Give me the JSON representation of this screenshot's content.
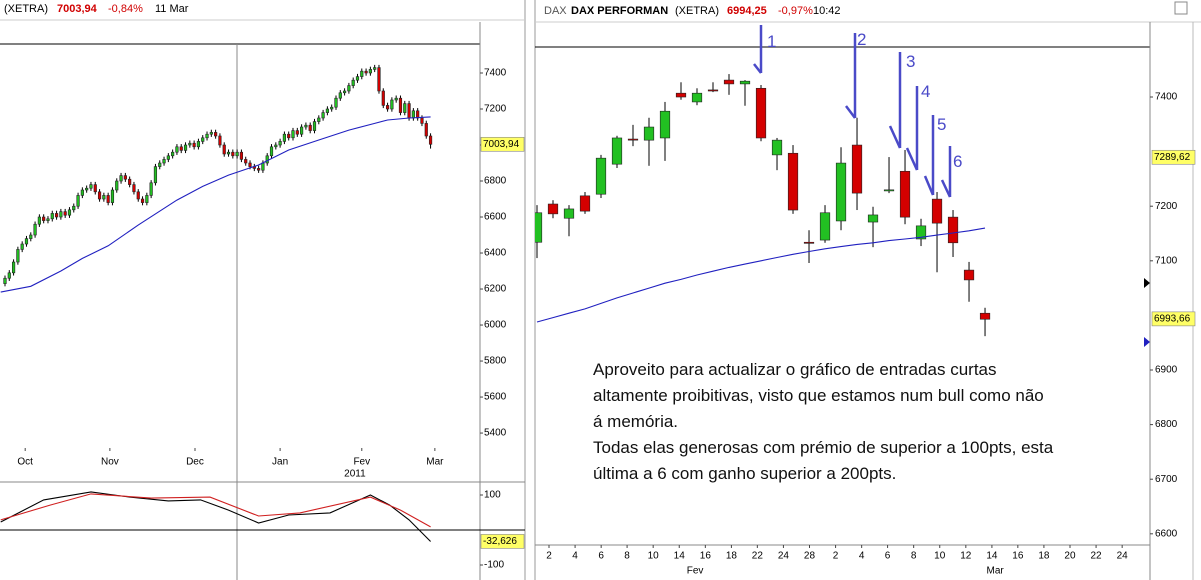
{
  "chart_data": [
    {
      "type": "candlestick",
      "header": {
        "exchange": "(XETRA)",
        "price": "7003,94",
        "change": "-0,84%",
        "date": "11 Mar"
      },
      "xlim": [
        -1.16,
        110.5
      ],
      "ylim": [
        5317,
        7561
      ],
      "yticks": [
        5400,
        5600,
        5800,
        6000,
        6200,
        6400,
        6600,
        6800,
        7000,
        7200,
        7400
      ],
      "xticks": [
        {
          "value": 4.7,
          "label": "Oct"
        },
        {
          "value": 24.4,
          "label": "Nov"
        },
        {
          "value": 44.2,
          "label": "Dec"
        },
        {
          "value": 64,
          "label": "Jan"
        },
        {
          "value": 83,
          "label": "Fev"
        },
        {
          "value": 100,
          "label": "Mar"
        }
      ],
      "year_label": {
        "value": 81.4,
        "label": "2011"
      },
      "price_labels": [
        {
          "value": 7003.94,
          "label": "7003,94"
        }
      ],
      "candles": {
        "up_color": "#22c022",
        "down_color": "#d40000",
        "x": [
          0,
          1,
          2,
          3,
          4,
          5,
          6,
          7,
          8,
          9,
          10,
          11,
          12,
          13,
          14,
          15,
          16,
          17,
          18,
          19,
          20,
          21,
          22,
          23,
          24,
          25,
          26,
          27,
          28,
          29,
          30,
          31,
          32,
          33,
          34,
          35,
          36,
          37,
          38,
          39,
          40,
          41,
          42,
          43,
          44,
          45,
          46,
          47,
          48,
          49,
          50,
          51,
          52,
          53,
          54,
          55,
          56,
          57,
          58,
          59,
          60,
          61,
          62,
          63,
          64,
          65,
          66,
          67,
          68,
          69,
          70,
          71,
          72,
          73,
          74,
          75,
          76,
          77,
          78,
          79,
          80,
          81,
          82,
          83,
          84,
          85,
          86,
          87,
          88,
          89,
          90,
          91,
          92,
          93,
          94,
          95,
          96,
          97,
          98,
          99
        ],
        "open": [
          6230,
          6260,
          6290,
          6350,
          6420,
          6450,
          6480,
          6500,
          6560,
          6600,
          6580,
          6590,
          6620,
          6600,
          6630,
          6610,
          6640,
          6660,
          6720,
          6750,
          6760,
          6780,
          6740,
          6700,
          6720,
          6680,
          6750,
          6800,
          6830,
          6810,
          6780,
          6740,
          6700,
          6680,
          6720,
          6790,
          6880,
          6900,
          6920,
          6940,
          6960,
          6990,
          6970,
          7000,
          7010,
          6990,
          7020,
          7040,
          7060,
          7070,
          7050,
          7000,
          6950,
          6960,
          6940,
          6960,
          6920,
          6900,
          6880,
          6870,
          6860,
          6900,
          6940,
          6990,
          7000,
          7020,
          7060,
          7040,
          7080,
          7060,
          7100,
          7110,
          7080,
          7130,
          7150,
          7180,
          7200,
          7210,
          7260,
          7290,
          7300,
          7330,
          7360,
          7380,
          7410,
          7400,
          7420,
          7430,
          7300,
          7220,
          7200,
          7250,
          7260,
          7180,
          7230,
          7150,
          7190,
          7150,
          7120,
          7050
        ],
        "high": [
          6275,
          6305,
          6365,
          6435,
          6465,
          6495,
          6515,
          6575,
          6615,
          6615,
          6605,
          6635,
          6635,
          6645,
          6645,
          6655,
          6675,
          6735,
          6765,
          6775,
          6795,
          6795,
          6755,
          6735,
          6735,
          6765,
          6815,
          6845,
          6845,
          6825,
          6795,
          6755,
          6715,
          6735,
          6805,
          6895,
          6915,
          6935,
          6955,
          6975,
          7005,
          7005,
          7015,
          7025,
          7025,
          7035,
          7055,
          7075,
          7085,
          7085,
          7065,
          7015,
          6975,
          6975,
          6975,
          6975,
          6935,
          6915,
          6895,
          6885,
          6915,
          6955,
          7005,
          7015,
          7035,
          7075,
          7075,
          7095,
          7095,
          7115,
          7125,
          7125,
          7145,
          7165,
          7195,
          7215,
          7225,
          7275,
          7305,
          7315,
          7345,
          7375,
          7395,
          7425,
          7425,
          7435,
          7445,
          7445,
          7315,
          7235,
          7265,
          7275,
          7275,
          7245,
          7245,
          7205,
          7205,
          7165,
          7135,
          7065
        ],
        "low": [
          6215,
          6245,
          6275,
          6335,
          6405,
          6435,
          6465,
          6485,
          6545,
          6565,
          6565,
          6575,
          6585,
          6585,
          6595,
          6595,
          6625,
          6645,
          6705,
          6735,
          6745,
          6725,
          6685,
          6685,
          6665,
          6665,
          6735,
          6785,
          6795,
          6765,
          6725,
          6685,
          6665,
          6665,
          6705,
          6775,
          6865,
          6885,
          6905,
          6925,
          6945,
          6955,
          6955,
          6985,
          6975,
          6975,
          7005,
          7025,
          7045,
          7035,
          6985,
          6935,
          6935,
          6925,
          6925,
          6905,
          6885,
          6865,
          6855,
          6845,
          6845,
          6885,
          6925,
          6975,
          6985,
          7005,
          7025,
          7025,
          7045,
          7045,
          7085,
          7065,
          7065,
          7115,
          7135,
          7165,
          7185,
          7195,
          7245,
          7275,
          7285,
          7315,
          7345,
          7365,
          7385,
          7385,
          7405,
          7285,
          7205,
          7185,
          7185,
          7235,
          7165,
          7165,
          7135,
          7135,
          7135,
          7105,
          7035,
          6980
        ],
        "close": [
          6260,
          6290,
          6350,
          6420,
          6450,
          6480,
          6500,
          6560,
          6600,
          6580,
          6590,
          6620,
          6600,
          6630,
          6610,
          6640,
          6660,
          6720,
          6750,
          6760,
          6780,
          6740,
          6700,
          6720,
          6680,
          6750,
          6800,
          6830,
          6810,
          6780,
          6740,
          6700,
          6680,
          6720,
          6790,
          6880,
          6900,
          6920,
          6940,
          6960,
          6990,
          6970,
          7000,
          7010,
          6990,
          7020,
          7040,
          7060,
          7070,
          7050,
          7000,
          6950,
          6960,
          6940,
          6960,
          6920,
          6900,
          6880,
          6870,
          6860,
          6900,
          6940,
          6990,
          7000,
          7020,
          7060,
          7040,
          7080,
          7060,
          7100,
          7110,
          7080,
          7130,
          7150,
          7180,
          7200,
          7210,
          7260,
          7290,
          7300,
          7330,
          7360,
          7380,
          7410,
          7400,
          7420,
          7430,
          7300,
          7220,
          7200,
          7250,
          7260,
          7180,
          7230,
          7150,
          7190,
          7150,
          7120,
          7050,
          7004
        ]
      },
      "series": [
        {
          "color": "#2020c0",
          "x": [
            -1,
            6,
            13,
            18,
            24,
            31,
            40,
            46,
            52,
            59,
            66,
            73,
            80,
            86,
            89,
            94,
            99
          ],
          "values": [
            6183,
            6215,
            6300,
            6370,
            6440,
            6555,
            6694,
            6770,
            6833,
            6889,
            6972,
            7028,
            7083,
            7120,
            7139,
            7150,
            7156
          ]
        }
      ]
    },
    {
      "type": "line",
      "xlim": [
        -1.16,
        110.5
      ],
      "ylim": [
        -120,
        120
      ],
      "yticks": [
        100,
        -100
      ],
      "zero_line": 0,
      "price_labels": [
        {
          "value": -32.626,
          "label": "-32,626"
        }
      ],
      "series": [
        {
          "color": "#000000",
          "x": [
            -1,
            3.5,
            9,
            20,
            29,
            38,
            45.5,
            52,
            59,
            66,
            75.6,
            85,
            89.5,
            94,
            99
          ],
          "values": [
            23,
            51,
            86,
            109,
            94,
            83,
            86,
            57,
            20,
            43,
            49,
            100,
            71,
            29,
            -33
          ]
        },
        {
          "color": "#d02020",
          "x": [
            -1,
            10.5,
            20,
            34,
            47.7,
            59,
            68.6,
            85,
            92,
            99
          ],
          "values": [
            29,
            71,
            103,
            91,
            94,
            40,
            49,
            94,
            57,
            9
          ]
        }
      ]
    },
    {
      "type": "candlestick",
      "header": {
        "symbol": "DAX",
        "name": "DAX PERFORMAN",
        "exchange": "(XETRA)",
        "price": "6994,25",
        "change": "-0,97%",
        "time": "10:42"
      },
      "xlim": [
        -0.125,
        38.31
      ],
      "ylim": [
        6579.5,
        7491.6
      ],
      "yticks": [
        6600,
        6700,
        6800,
        6900,
        7100,
        7200,
        7400
      ],
      "xticks": [
        {
          "value": 0.75,
          "label": "2"
        },
        {
          "value": 2.38,
          "label": "4"
        },
        {
          "value": 4.01,
          "label": "6"
        },
        {
          "value": 5.63,
          "label": "8"
        },
        {
          "value": 7.26,
          "label": "10"
        },
        {
          "value": 8.89,
          "label": "14"
        },
        {
          "value": 10.52,
          "label": "16"
        },
        {
          "value": 12.15,
          "label": "18"
        },
        {
          "value": 13.77,
          "label": "22"
        },
        {
          "value": 15.4,
          "label": "24"
        },
        {
          "value": 17.03,
          "label": "28"
        },
        {
          "value": 18.66,
          "label": "2"
        },
        {
          "value": 20.29,
          "label": "4"
        },
        {
          "value": 21.91,
          "label": "6"
        },
        {
          "value": 23.54,
          "label": "8"
        },
        {
          "value": 25.17,
          "label": "10"
        },
        {
          "value": 26.8,
          "label": "12"
        },
        {
          "value": 28.43,
          "label": "14"
        },
        {
          "value": 30.05,
          "label": "16"
        },
        {
          "value": 31.68,
          "label": "18"
        },
        {
          "value": 33.31,
          "label": "20"
        },
        {
          "value": 34.94,
          "label": "22"
        },
        {
          "value": 36.57,
          "label": "24"
        }
      ],
      "month_ticks": [
        {
          "value": 9.88,
          "label": "Fev"
        },
        {
          "value": 28.63,
          "label": "Mar"
        }
      ],
      "price_labels": [
        {
          "value": 7289.62,
          "label": "7289,62"
        },
        {
          "value": 6993.66,
          "label": "6993,66"
        }
      ],
      "annotations": [
        "1",
        "2",
        "3",
        "4",
        "5",
        "6"
      ],
      "note": [
        "Aproveito para actualizar o gráfico de entradas curtas",
        "altamente proibitivas, visto que estamos num bull como não",
        "á memória.",
        "Todas elas generosas com prémio de superior a 100pts, esta",
        "última a 6 com ganho superior a 200pts."
      ],
      "candles": {
        "up_color": "#22c022",
        "down_color": "#d40000",
        "x": [
          0,
          1,
          2,
          3,
          4,
          5,
          6,
          7,
          8,
          9,
          10,
          11,
          12,
          13,
          14,
          15,
          16,
          17,
          18,
          19,
          20,
          21,
          22,
          23,
          24,
          25,
          26,
          27,
          28
        ],
        "open": [
          7134,
          7204,
          7178,
          7219,
          7222,
          7277,
          7323,
          7321,
          7325,
          7407,
          7391,
          7413,
          7431,
          7424,
          7416,
          7294,
          7297,
          7134,
          7138,
          7173,
          7312,
          7171,
          7228,
          7264,
          7140,
          7213,
          7180,
          7083,
          7004
        ],
        "high": [
          7202,
          7211,
          7202,
          7226,
          7294,
          7329,
          7349,
          7362,
          7391,
          7427,
          7416,
          7427,
          7442,
          7431,
          7422,
          7325,
          7312,
          7156,
          7202,
          7308,
          7362,
          7199,
          7290,
          7303,
          7177,
          7226,
          7193,
          7098,
          7014
        ],
        "low": [
          7105,
          7178,
          7145,
          7186,
          7215,
          7270,
          7310,
          7274,
          7283,
          7395,
          7385,
          7409,
          7404,
          7384,
          7319,
          7266,
          7186,
          7096,
          7133,
          7156,
          7193,
          7125,
          7224,
          7167,
          7127,
          7079,
          7107,
          7025,
          6962
        ],
        "close": [
          7188,
          7186,
          7195,
          7191,
          7288,
          7325,
          7321,
          7345,
          7374,
          7400,
          7407,
          7411,
          7424,
          7429,
          7325,
          7321,
          7193,
          7132,
          7188,
          7279,
          7224,
          7184,
          7230,
          7180,
          7164,
          7169,
          7133,
          7065,
          6993
        ]
      },
      "series": [
        {
          "color": "#2020c0",
          "x": [
            0,
            1,
            2,
            3,
            4,
            5,
            6,
            7,
            8,
            9,
            10,
            11,
            12,
            13,
            14,
            15,
            16,
            17,
            18,
            19,
            20,
            21,
            22,
            23,
            24,
            25,
            26,
            27,
            28
          ],
          "values": [
            6988,
            6996,
            7004,
            7012,
            7022,
            7032,
            7041,
            7050,
            7059,
            7066,
            7074,
            7081,
            7088,
            7094,
            7100,
            7106,
            7112,
            7117,
            7122,
            7126,
            7130,
            7133,
            7137,
            7140,
            7143,
            7147,
            7151,
            7155,
            7160
          ]
        }
      ]
    }
  ]
}
